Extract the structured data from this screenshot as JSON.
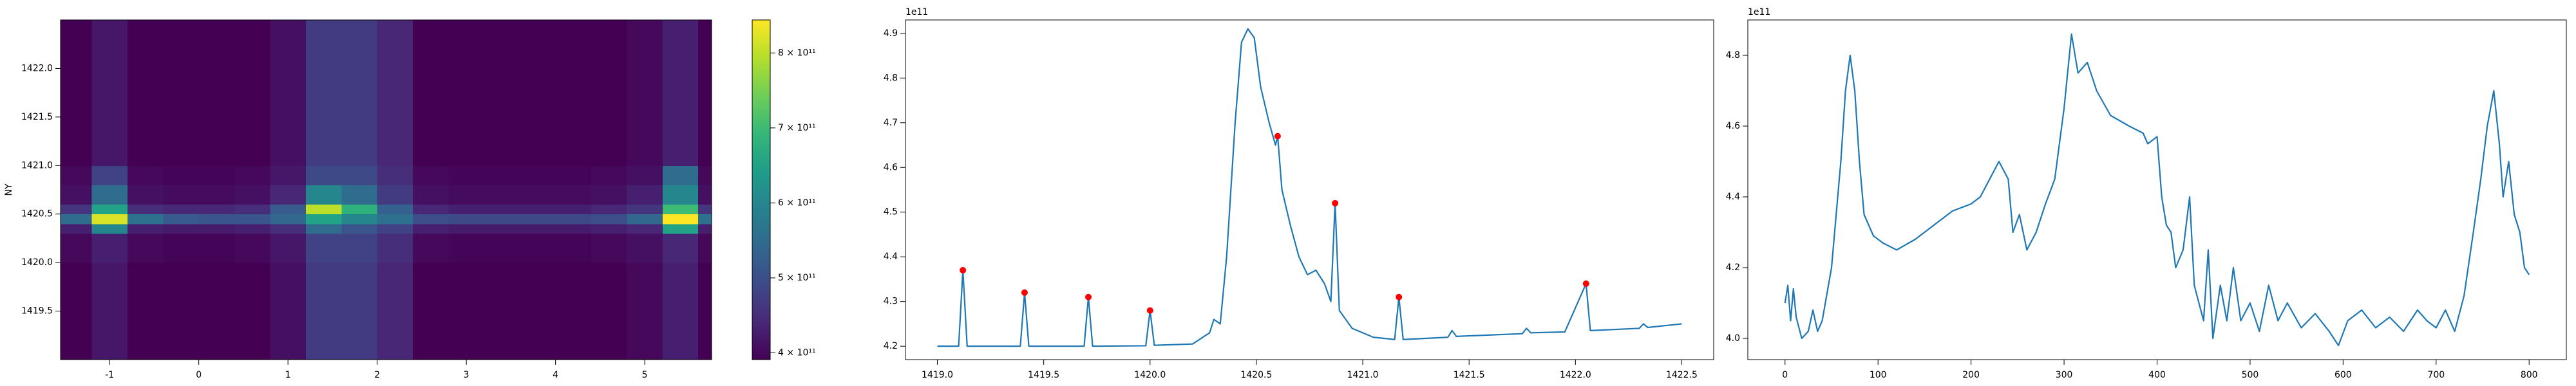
{
  "chart_data": [
    {
      "type": "heatmap",
      "ylabel": "NY",
      "xlim": [
        -1.55,
        5.75
      ],
      "ylim": [
        1419.0,
        1422.5
      ],
      "xticks": [
        -1,
        0,
        1,
        2,
        3,
        4,
        5
      ],
      "yticks": [
        1419.5,
        {
          "value": 1420,
          "label": "1420.0"
        },
        1420.5,
        {
          "value": 1421,
          "label": "1421.0"
        },
        1421.5,
        {
          "value": 1422,
          "label": "1422.0"
        }
      ],
      "x_edges": [
        -1.55,
        -1.2,
        -0.8,
        -0.4,
        0,
        0.4,
        0.8,
        1.2,
        1.6,
        2.0,
        2.4,
        2.8,
        3.2,
        3.6,
        4.0,
        4.4,
        4.8,
        5.2,
        5.6,
        5.75
      ],
      "y_edges": [
        1419.0,
        1419.5,
        1420.0,
        1420.3,
        1420.4,
        1420.5,
        1420.6,
        1420.8,
        1421.0,
        1421.5,
        1422.0,
        1422.5
      ],
      "values": [
        [
          390000000000.0,
          420000000000.0,
          390000000000.0,
          385000000000.0,
          385000000000.0,
          390000000000.0,
          410000000000.0,
          470000000000.0,
          470000000000.0,
          440000000000.0,
          390000000000.0,
          385000000000.0,
          385000000000.0,
          385000000000.0,
          385000000000.0,
          390000000000.0,
          400000000000.0,
          430000000000.0,
          390000000000.0
        ],
        [
          390000000000.0,
          420000000000.0,
          390000000000.0,
          385000000000.0,
          385000000000.0,
          390000000000.0,
          410000000000.0,
          470000000000.0,
          470000000000.0,
          440000000000.0,
          390000000000.0,
          385000000000.0,
          385000000000.0,
          385000000000.0,
          385000000000.0,
          390000000000.0,
          400000000000.0,
          430000000000.0,
          390000000000.0
        ],
        [
          400000000000.0,
          430000000000.0,
          400000000000.0,
          395000000000.0,
          395000000000.0,
          400000000000.0,
          420000000000.0,
          480000000000.0,
          480000000000.0,
          450000000000.0,
          400000000000.0,
          395000000000.0,
          395000000000.0,
          395000000000.0,
          395000000000.0,
          400000000000.0,
          410000000000.0,
          440000000000.0,
          400000000000.0
        ],
        [
          430000000000.0,
          600000000000.0,
          430000000000.0,
          425000000000.0,
          425000000000.0,
          430000000000.0,
          450000000000.0,
          550000000000.0,
          510000000000.0,
          480000000000.0,
          430000000000.0,
          425000000000.0,
          425000000000.0,
          425000000000.0,
          425000000000.0,
          430000000000.0,
          440000000000.0,
          650000000000.0,
          430000000000.0
        ],
        [
          550000000000.0,
          820000000000.0,
          560000000000.0,
          520000000000.0,
          510000000000.0,
          510000000000.0,
          540000000000.0,
          650000000000.0,
          600000000000.0,
          560000000000.0,
          500000000000.0,
          490000000000.0,
          490000000000.0,
          490000000000.0,
          490000000000.0,
          500000000000.0,
          540000000000.0,
          860000000000.0,
          560000000000.0
        ],
        [
          460000000000.0,
          650000000000.0,
          450000000000.0,
          440000000000.0,
          440000000000.0,
          450000000000.0,
          520000000000.0,
          800000000000.0,
          680000000000.0,
          530000000000.0,
          440000000000.0,
          430000000000.0,
          430000000000.0,
          430000000000.0,
          430000000000.0,
          440000000000.0,
          460000000000.0,
          700000000000.0,
          460000000000.0
        ],
        [
          410000000000.0,
          550000000000.0,
          410000000000.0,
          405000000000.0,
          405000000000.0,
          410000000000.0,
          440000000000.0,
          600000000000.0,
          550000000000.0,
          470000000000.0,
          410000000000.0,
          405000000000.0,
          405000000000.0,
          405000000000.0,
          405000000000.0,
          410000000000.0,
          430000000000.0,
          600000000000.0,
          410000000000.0
        ],
        [
          400000000000.0,
          480000000000.0,
          400000000000.0,
          395000000000.0,
          395000000000.0,
          400000000000.0,
          420000000000.0,
          490000000000.0,
          490000000000.0,
          450000000000.0,
          400000000000.0,
          395000000000.0,
          395000000000.0,
          395000000000.0,
          395000000000.0,
          400000000000.0,
          410000000000.0,
          550000000000.0,
          400000000000.0
        ],
        [
          390000000000.0,
          420000000000.0,
          390000000000.0,
          385000000000.0,
          385000000000.0,
          390000000000.0,
          410000000000.0,
          470000000000.0,
          470000000000.0,
          440000000000.0,
          390000000000.0,
          385000000000.0,
          385000000000.0,
          385000000000.0,
          385000000000.0,
          390000000000.0,
          400000000000.0,
          430000000000.0,
          390000000000.0
        ],
        [
          390000000000.0,
          420000000000.0,
          390000000000.0,
          385000000000.0,
          385000000000.0,
          390000000000.0,
          410000000000.0,
          470000000000.0,
          470000000000.0,
          440000000000.0,
          390000000000.0,
          385000000000.0,
          385000000000.0,
          385000000000.0,
          385000000000.0,
          390000000000.0,
          400000000000.0,
          430000000000.0,
          390000000000.0
        ],
        [
          390000000000.0,
          420000000000.0,
          390000000000.0,
          385000000000.0,
          385000000000.0,
          390000000000.0,
          410000000000.0,
          470000000000.0,
          470000000000.0,
          440000000000.0,
          390000000000.0,
          385000000000.0,
          385000000000.0,
          385000000000.0,
          385000000000.0,
          390000000000.0,
          400000000000.0,
          430000000000.0,
          390000000000.0
        ]
      ],
      "colorbar": {
        "colormap": "viridis",
        "lim": [
          391000000000.0,
          844000000000.0
        ],
        "ticks": [
          {
            "value": 400000000000.0,
            "label": "4 × 10¹¹"
          },
          {
            "value": 500000000000.0,
            "label": "5 × 10¹¹"
          },
          {
            "value": 600000000000.0,
            "label": "6 × 10¹¹"
          },
          {
            "value": 700000000000.0,
            "label": "7 × 10¹¹"
          },
          {
            "value": 800000000000.0,
            "label": "8 × 10¹¹"
          }
        ]
      }
    },
    {
      "type": "line",
      "y_offset_label": "1e11",
      "xlim": [
        1418.85,
        1422.65
      ],
      "ylim": [
        4.17,
        4.93
      ],
      "xticks": [
        {
          "value": 1419,
          "label": "1419.0"
        },
        1419.5,
        {
          "value": 1420,
          "label": "1420.0"
        },
        1420.5,
        {
          "value": 1421,
          "label": "1421.0"
        },
        1421.5,
        {
          "value": 1422,
          "label": "1422.0"
        },
        1422.5
      ],
      "yticks": [
        4.2,
        4.3,
        4.4,
        4.5,
        4.6,
        4.7,
        4.8,
        4.9
      ],
      "series": [
        {
          "color": "#1f77b4",
          "x": [
            1419.0,
            1419.1,
            1419.12,
            1419.14,
            1419.39,
            1419.41,
            1419.43,
            1419.69,
            1419.71,
            1419.73,
            1419.98,
            1420.0,
            1420.02,
            1420.2,
            1420.28,
            1420.3,
            1420.33,
            1420.36,
            1420.4,
            1420.43,
            1420.46,
            1420.49,
            1420.52,
            1420.56,
            1420.59,
            1420.6,
            1420.62,
            1420.66,
            1420.7,
            1420.74,
            1420.78,
            1420.82,
            1420.85,
            1420.87,
            1420.89,
            1420.95,
            1421.05,
            1421.15,
            1421.17,
            1421.19,
            1421.4,
            1421.42,
            1421.44,
            1421.75,
            1421.77,
            1421.79,
            1421.95,
            1422.05,
            1422.07,
            1422.3,
            1422.32,
            1422.34,
            1422.5
          ],
          "values": [
            4.2,
            4.2,
            4.37,
            4.2,
            4.2,
            4.32,
            4.2,
            4.2,
            4.31,
            4.2,
            4.201,
            4.28,
            4.202,
            4.205,
            4.23,
            4.26,
            4.25,
            4.4,
            4.7,
            4.88,
            4.91,
            4.89,
            4.78,
            4.7,
            4.65,
            4.67,
            4.55,
            4.47,
            4.4,
            4.36,
            4.37,
            4.34,
            4.3,
            4.52,
            4.28,
            4.24,
            4.22,
            4.215,
            4.31,
            4.215,
            4.22,
            4.235,
            4.222,
            4.228,
            4.24,
            4.23,
            4.232,
            4.34,
            4.235,
            4.24,
            4.25,
            4.242,
            4.25
          ]
        },
        {
          "color": "#ff0000",
          "marker": true,
          "x": [
            1419.12,
            1419.41,
            1419.71,
            1420.0,
            1420.6,
            1420.87,
            1421.17,
            1422.05
          ],
          "values": [
            4.37,
            4.32,
            4.31,
            4.28,
            4.67,
            4.52,
            4.31,
            4.34
          ]
        }
      ]
    },
    {
      "type": "line",
      "y_offset_label": "1e11",
      "xlim": [
        -40,
        840
      ],
      "ylim": [
        3.94,
        4.9
      ],
      "xticks": [
        0,
        100,
        200,
        300,
        400,
        500,
        600,
        700,
        800
      ],
      "yticks": [
        {
          "value": 4,
          "label": "4.0"
        },
        4.2,
        4.4,
        4.6,
        4.8
      ],
      "series": [
        {
          "color": "#1f77b4",
          "x": [
            0,
            3,
            6,
            9,
            12,
            18,
            25,
            30,
            35,
            40,
            50,
            55,
            60,
            65,
            70,
            75,
            80,
            85,
            95,
            105,
            120,
            140,
            160,
            180,
            200,
            210,
            220,
            230,
            240,
            245,
            252,
            260,
            270,
            280,
            290,
            300,
            308,
            315,
            325,
            335,
            350,
            370,
            385,
            390,
            400,
            405,
            410,
            415,
            420,
            428,
            435,
            440,
            445,
            450,
            455,
            460,
            468,
            475,
            482,
            490,
            500,
            510,
            520,
            530,
            540,
            555,
            570,
            585,
            595,
            605,
            620,
            635,
            650,
            665,
            680,
            690,
            700,
            710,
            720,
            730,
            740,
            748,
            755,
            762,
            768,
            772,
            778,
            784,
            790,
            795,
            800
          ],
          "values": [
            4.1,
            4.15,
            4.05,
            4.14,
            4.06,
            4.0,
            4.02,
            4.08,
            4.02,
            4.05,
            4.2,
            4.35,
            4.5,
            4.7,
            4.8,
            4.7,
            4.5,
            4.35,
            4.29,
            4.27,
            4.25,
            4.28,
            4.32,
            4.36,
            4.38,
            4.4,
            4.45,
            4.5,
            4.45,
            4.3,
            4.35,
            4.25,
            4.3,
            4.38,
            4.45,
            4.65,
            4.86,
            4.75,
            4.78,
            4.7,
            4.63,
            4.6,
            4.58,
            4.55,
            4.57,
            4.4,
            4.32,
            4.3,
            4.2,
            4.25,
            4.4,
            4.15,
            4.1,
            4.05,
            4.25,
            4.0,
            4.15,
            4.05,
            4.2,
            4.05,
            4.1,
            4.02,
            4.15,
            4.05,
            4.1,
            4.03,
            4.07,
            4.02,
            3.98,
            4.05,
            4.08,
            4.03,
            4.06,
            4.02,
            4.08,
            4.05,
            4.03,
            4.08,
            4.02,
            4.12,
            4.3,
            4.45,
            4.6,
            4.7,
            4.55,
            4.4,
            4.5,
            4.35,
            4.3,
            4.2,
            4.18
          ]
        }
      ]
    }
  ]
}
